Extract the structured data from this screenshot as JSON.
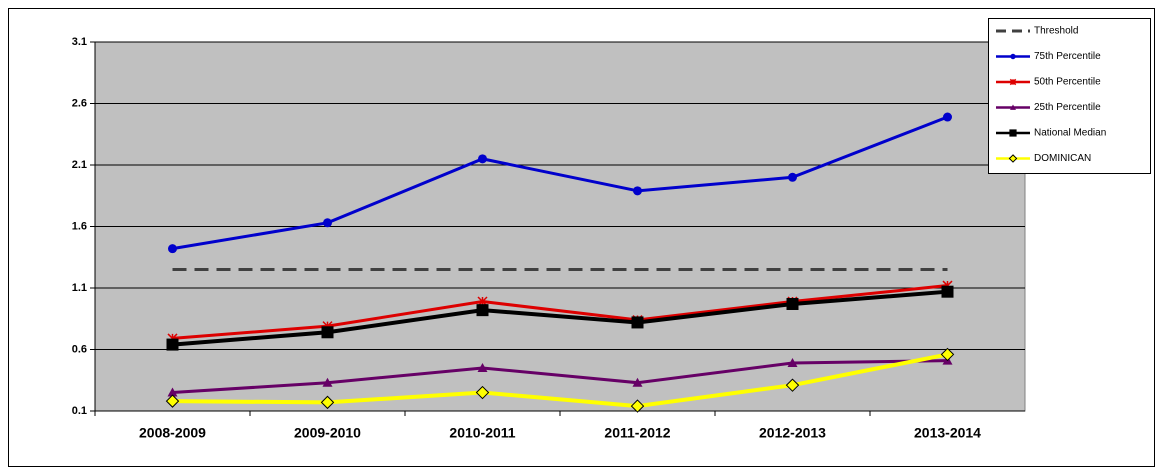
{
  "chart_data": {
    "type": "line",
    "categories": [
      "2008-2009",
      "2009-2010",
      "2010-2011",
      "2011-2012",
      "2012-2013",
      "2013-2014"
    ],
    "ylim": [
      0.1,
      3.1
    ],
    "yticks": [
      0.1,
      0.6,
      1.1,
      1.6,
      2.1,
      2.6,
      3.1
    ],
    "grid": true,
    "plot_background": "#c0c0c0",
    "legend": "top-right",
    "series": [
      {
        "name": "Threshold",
        "color": "#404040",
        "dashed": true,
        "marker": "none",
        "values": [
          1.25,
          1.25,
          1.25,
          1.25,
          1.25,
          1.25
        ]
      },
      {
        "name": "75th Percentile",
        "color": "#0000cc",
        "marker": "circle",
        "values": [
          1.42,
          1.63,
          2.15,
          1.89,
          2.0,
          2.49
        ]
      },
      {
        "name": "50th Percentile",
        "color": "#dd0000",
        "marker": "star",
        "values": [
          0.69,
          0.79,
          0.99,
          0.84,
          0.99,
          1.12
        ]
      },
      {
        "name": "25th Percentile",
        "color": "#660066",
        "marker": "triangle",
        "values": [
          0.25,
          0.33,
          0.45,
          0.33,
          0.49,
          0.51
        ]
      },
      {
        "name": "National Median",
        "color": "#000000",
        "marker": "square",
        "values": [
          0.64,
          0.74,
          0.92,
          0.82,
          0.97,
          1.07
        ]
      },
      {
        "name": "DOMINICAN",
        "color": "#ffff00",
        "marker": "diamond",
        "values": [
          0.18,
          0.17,
          0.25,
          0.14,
          0.31,
          0.56
        ]
      }
    ]
  }
}
